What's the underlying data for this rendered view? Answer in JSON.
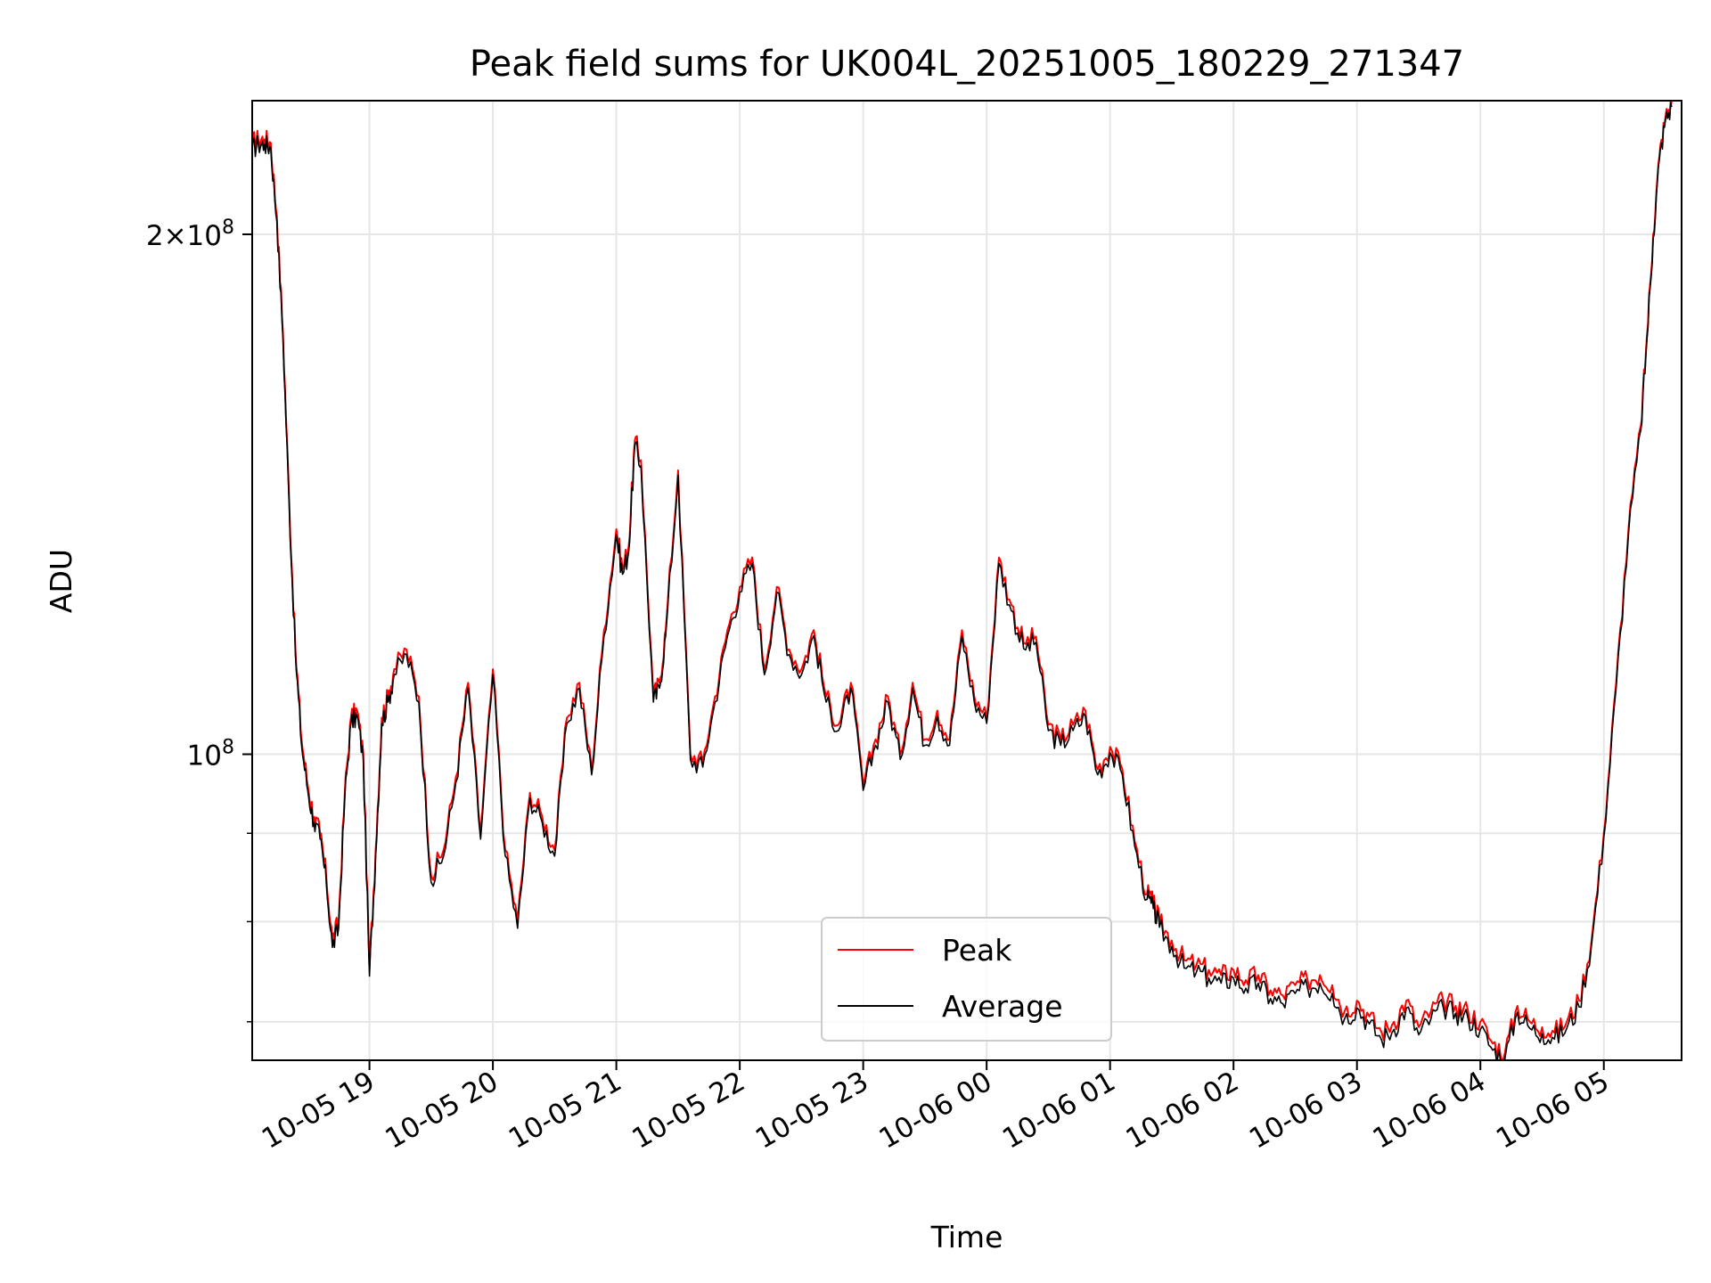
{
  "chart_data": {
    "type": "line",
    "title": "Peak field sums for UK004L_20251005_180229_271347",
    "xlabel": "Time",
    "ylabel": "ADU",
    "yscale": "log",
    "grid": true,
    "legend_position": "lower-center",
    "x_unit": "hours since 2025-10-05 18:00",
    "xlim": [
      0.05,
      11.63
    ],
    "ylim": [
      66500000,
      239000000
    ],
    "x_ticks": [
      {
        "x": 1,
        "label": "10-05 19"
      },
      {
        "x": 2,
        "label": "10-05 20"
      },
      {
        "x": 3,
        "label": "10-05 21"
      },
      {
        "x": 4,
        "label": "10-05 22"
      },
      {
        "x": 5,
        "label": "10-05 23"
      },
      {
        "x": 6,
        "label": "10-06 00"
      },
      {
        "x": 7,
        "label": "10-06 01"
      },
      {
        "x": 8,
        "label": "10-06 02"
      },
      {
        "x": 9,
        "label": "10-06 03"
      },
      {
        "x": 10,
        "label": "10-06 04"
      },
      {
        "x": 11,
        "label": "10-06 05"
      }
    ],
    "y_major_ticks": [
      {
        "y": 100000000,
        "base": "10",
        "exp": "8",
        "mant": ""
      },
      {
        "y": 200000000,
        "base": "10",
        "exp": "8",
        "mant": "2×"
      }
    ],
    "y_minor_ticks": [
      70000000,
      80000000,
      90000000
    ],
    "series": [
      {
        "name": "Peak",
        "color": "#ff0000",
        "linewidth": 1.2
      },
      {
        "name": "Average",
        "color": "#000000",
        "linewidth": 1.2
      }
    ],
    "x": [
      0.05,
      0.1,
      0.15,
      0.2,
      0.25,
      0.3,
      0.35,
      0.4,
      0.45,
      0.5,
      0.55,
      0.6,
      0.65,
      0.7,
      0.75,
      0.8,
      0.85,
      0.9,
      0.95,
      1.0,
      1.05,
      1.1,
      1.15,
      1.2,
      1.3,
      1.4,
      1.5,
      1.6,
      1.7,
      1.8,
      1.9,
      2.0,
      2.1,
      2.2,
      2.3,
      2.4,
      2.5,
      2.6,
      2.7,
      2.8,
      2.9,
      3.0,
      3.05,
      3.1,
      3.15,
      3.2,
      3.3,
      3.35,
      3.4,
      3.5,
      3.6,
      3.7,
      3.8,
      3.9,
      4.0,
      4.1,
      4.2,
      4.3,
      4.4,
      4.5,
      4.6,
      4.7,
      4.8,
      4.9,
      5.0,
      5.1,
      5.2,
      5.3,
      5.4,
      5.5,
      5.6,
      5.7,
      5.8,
      5.9,
      6.0,
      6.1,
      6.2,
      6.3,
      6.4,
      6.5,
      6.6,
      6.7,
      6.8,
      6.9,
      7.0,
      7.1,
      7.2,
      7.3,
      7.35,
      7.4,
      7.5,
      7.6,
      7.7,
      7.8,
      7.9,
      8.0,
      8.1,
      8.2,
      8.3,
      8.4,
      8.5,
      8.6,
      8.7,
      8.8,
      8.9,
      9.0,
      9.1,
      9.2,
      9.3,
      9.4,
      9.5,
      9.6,
      9.7,
      9.8,
      9.9,
      10.0,
      10.1,
      10.2,
      10.3,
      10.4,
      10.5,
      10.6,
      10.7,
      10.8,
      10.9,
      11.0,
      11.1,
      11.2,
      11.3,
      11.35,
      11.4,
      11.45,
      11.5,
      11.55,
      11.6,
      11.63
    ],
    "peak": [
      226000000,
      227000000,
      227000000,
      226000000,
      205000000,
      175000000,
      140000000,
      115000000,
      102000000,
      96000000,
      92000000,
      90000000,
      85000000,
      78000000,
      80000000,
      95000000,
      105000000,
      106000000,
      100000000,
      75000000,
      88000000,
      105000000,
      108000000,
      112000000,
      115000000,
      108000000,
      85000000,
      88000000,
      97000000,
      110000000,
      90000000,
      112000000,
      88000000,
      80000000,
      95000000,
      92000000,
      88000000,
      105000000,
      110000000,
      98000000,
      118000000,
      135000000,
      128000000,
      132000000,
      152000000,
      148000000,
      108000000,
      110000000,
      118000000,
      146000000,
      100000000,
      99000000,
      108000000,
      118000000,
      125000000,
      130000000,
      112000000,
      125000000,
      115000000,
      112000000,
      118000000,
      108000000,
      104000000,
      110000000,
      96000000,
      102000000,
      108000000,
      100000000,
      110000000,
      102000000,
      106000000,
      102000000,
      118000000,
      108000000,
      105000000,
      130000000,
      122000000,
      116000000,
      117000000,
      104000000,
      102000000,
      104000000,
      106000000,
      98000000,
      101000000,
      98000000,
      89000000,
      83000000,
      82000000,
      80000000,
      78000000,
      76000000,
      75500000,
      75000000,
      74500000,
      75000000,
      74000000,
      74500000,
      73000000,
      72500000,
      73500000,
      74000000,
      74500000,
      73500000,
      71000000,
      72000000,
      70500000,
      69000000,
      70000000,
      72000000,
      69500000,
      71000000,
      72000000,
      71500000,
      71000000,
      70000000,
      68000000,
      67200000,
      71500000,
      70000000,
      69500000,
      69000000,
      70000000,
      72000000,
      78000000,
      90000000,
      110000000,
      135000000,
      155000000,
      175000000,
      200000000,
      222000000,
      234000000,
      238000000
    ],
    "average": [
      224000000,
      225500000,
      225500000,
      224500000,
      203500000,
      173800000,
      139000000,
      114200000,
      101200000,
      95300000,
      91300000,
      89300000,
      84300000,
      77300000,
      79300000,
      94300000,
      104200000,
      105200000,
      99300000,
      74400000,
      87300000,
      104200000,
      107200000,
      111200000,
      114200000,
      107200000,
      84300000,
      87300000,
      96300000,
      109200000,
      89300000,
      111200000,
      87300000,
      79300000,
      94300000,
      91300000,
      87300000,
      104200000,
      109200000,
      97300000,
      117100000,
      134000000,
      127100000,
      131000000,
      150900000,
      146900000,
      107200000,
      109200000,
      117100000,
      145000000,
      99300000,
      98300000,
      107200000,
      117100000,
      124100000,
      129000000,
      111200000,
      124100000,
      114200000,
      111200000,
      117100000,
      107200000,
      103200000,
      109200000,
      95300000,
      101200000,
      107200000,
      99300000,
      109200000,
      101200000,
      105200000,
      101200000,
      117100000,
      107200000,
      104200000,
      129000000,
      121100000,
      115100000,
      116100000,
      103200000,
      101200000,
      103200000,
      105200000,
      97300000,
      100200000,
      97300000,
      88400000,
      82400000,
      81400000,
      79400000,
      77400000,
      75200000,
      74800000,
      74200000,
      73700000,
      74200000,
      73200000,
      73700000,
      72200000,
      71700000,
      72700000,
      73200000,
      73700000,
      72700000,
      70300000,
      71300000,
      69800000,
      68300000,
      69300000,
      71300000,
      68800000,
      70300000,
      71300000,
      70800000,
      70300000,
      69300000,
      67400000,
      66700000,
      70900000,
      69400000,
      68900000,
      68400000,
      69400000,
      71400000,
      77500000,
      89500000,
      109300000,
      134100000,
      154100000,
      174000000,
      199000000,
      221000000,
      233000000,
      237000000
    ]
  }
}
